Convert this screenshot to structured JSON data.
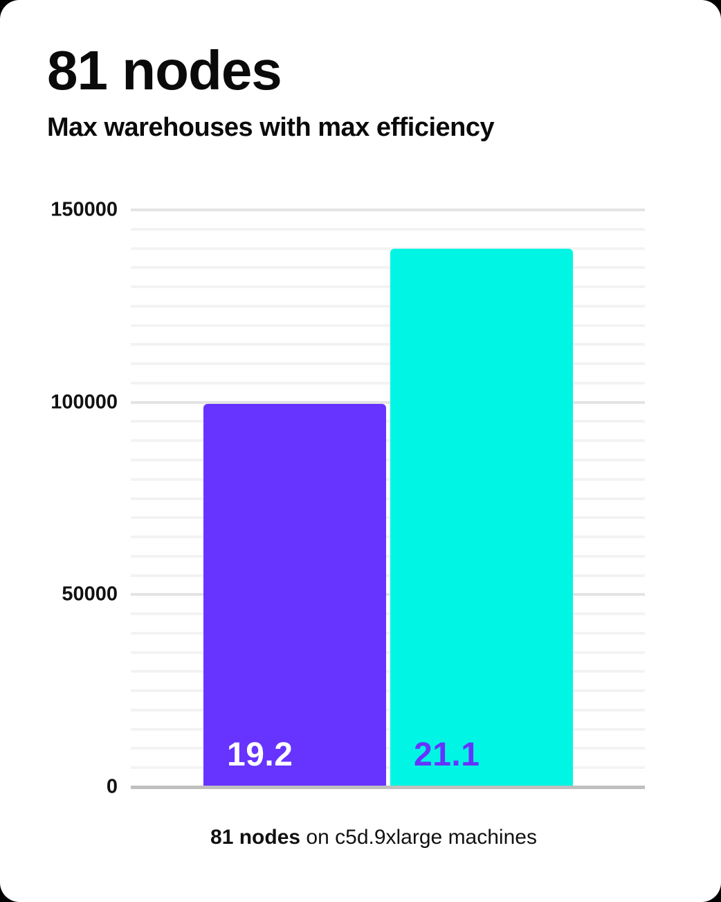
{
  "header": {
    "title": "81 nodes",
    "subtitle": "Max warehouses with max efficiency"
  },
  "caption": {
    "bold": "81 nodes",
    "rest": " on c5d.9xlarge machines"
  },
  "chart_data": {
    "type": "bar",
    "title": "81 nodes",
    "subtitle": "Max warehouses with max efficiency",
    "categories": [
      "19.2",
      "21.1"
    ],
    "values": [
      99500,
      140000
    ],
    "bar_value_note": "bar labels show version numbers; bar heights show max warehouses",
    "xlabel": "81 nodes on c5d.9xlarge machines",
    "ylabel": "",
    "ylim": [
      0,
      150000
    ],
    "yticks": [
      0,
      50000,
      100000,
      150000
    ],
    "minor_grid_interval": 5000,
    "major_grid_interval": 50000,
    "grid": true,
    "legend": false,
    "bar_colors": [
      "#6633ff",
      "#00f5e4"
    ],
    "bar_label_colors": [
      "#ffffff",
      "#6633ff"
    ]
  },
  "colors": {
    "background": "#ffffff",
    "outside": "#000000",
    "text": "#0a0a0a",
    "axis_line": "#bfbfbf",
    "grid_minor": "#f3f3f3",
    "grid_major": "#e4e4e4",
    "purple": "#6633ff",
    "cyan": "#00f5e4"
  }
}
